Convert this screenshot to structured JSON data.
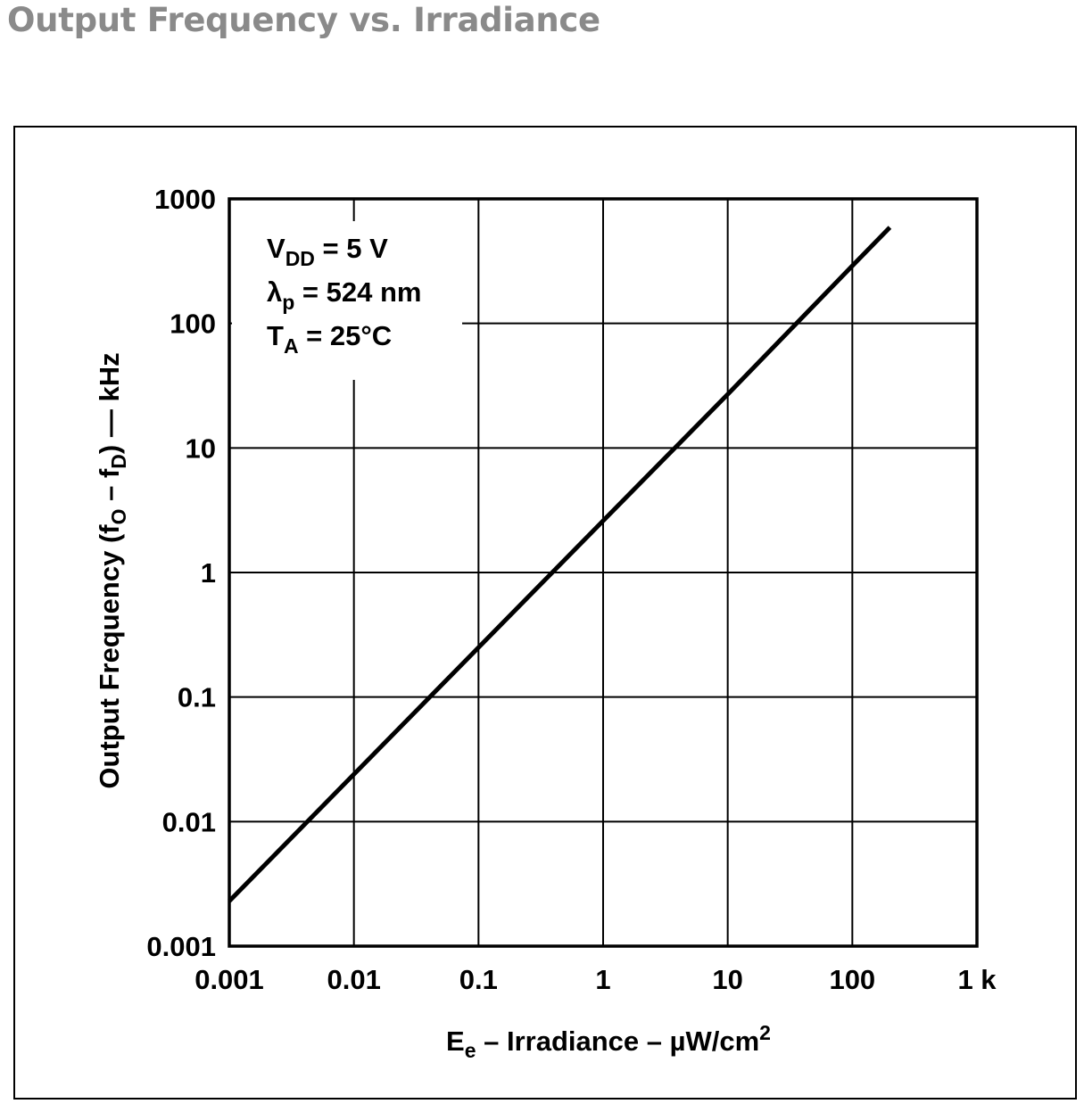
{
  "page": {
    "title": "Output Frequency vs. Irradiance"
  },
  "chart_data": {
    "type": "line",
    "title": "Output Frequency vs. Irradiance",
    "x_scale": "log",
    "y_scale": "log",
    "xlim": [
      0.001,
      1000
    ],
    "ylim": [
      0.001,
      1000
    ],
    "x_ticks": [
      {
        "value": 0.001,
        "label": "0.001"
      },
      {
        "value": 0.01,
        "label": "0.01"
      },
      {
        "value": 0.1,
        "label": "0.1"
      },
      {
        "value": 1,
        "label": "1"
      },
      {
        "value": 10,
        "label": "10"
      },
      {
        "value": 100,
        "label": "100"
      },
      {
        "value": 1000,
        "label": "1 k"
      }
    ],
    "y_ticks": [
      {
        "value": 0.001,
        "label": "0.001"
      },
      {
        "value": 0.01,
        "label": "0.01"
      },
      {
        "value": 0.1,
        "label": "0.1"
      },
      {
        "value": 1,
        "label": "1"
      },
      {
        "value": 10,
        "label": "10"
      },
      {
        "value": 100,
        "label": "100"
      },
      {
        "value": 1000,
        "label": "1000"
      }
    ],
    "xlabel": {
      "main": "E",
      "sub": "e",
      "rest": " – Irradiance – µW/cm",
      "sup": "2"
    },
    "ylabel": {
      "part1": "Output Frequency (f",
      "sub1": "O",
      "part2": " – f",
      "sub2": "D",
      "part3": ") — kHz"
    },
    "annotation_lines": [
      {
        "main": "V",
        "sub": "DD",
        "rest": " = 5 V"
      },
      {
        "main": "λ",
        "sub": "p",
        "rest": " = 524 nm"
      },
      {
        "main": "T",
        "sub": "A",
        "rest": " = 25°C"
      }
    ],
    "grid": true,
    "series": [
      {
        "x": [
          0.001,
          0.01,
          0.1,
          1,
          10,
          100,
          200
        ],
        "y": [
          0.0023,
          0.024,
          0.25,
          2.6,
          27,
          290,
          590
        ]
      }
    ],
    "line_color": "#000000"
  }
}
